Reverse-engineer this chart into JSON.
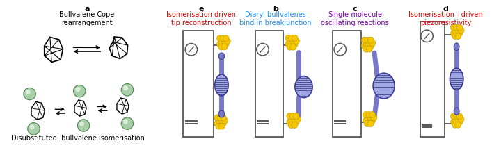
{
  "title_a": "a",
  "title_b": "b",
  "title_c": "c",
  "title_d": "d",
  "title_e": "e",
  "label_a": "Bullvalene Cope\nrearrangement",
  "label_b": "Diaryl bullvalenes\nbind in breakjunction",
  "label_c": "Single-molecule\noscillating reactions",
  "label_d": "Isomerisation - driven\npiezoresistivity",
  "label_e": "Isomerisation driven\ntip reconstruction",
  "label_bottom": "Disubstituted  bullvalene isomerisation",
  "color_b": "#1e90ff",
  "color_c": "#7b00b0",
  "color_d": "#e00000",
  "color_e": "#e00000",
  "blue_fill": "#7878c8",
  "blue_dark": "#3a3a90",
  "blue_light": "#a0a8e0",
  "yellow_fill": "#f5c800",
  "yellow_edge": "#c8a000",
  "gray_line": "#555555",
  "bg": "#ffffff",
  "green_fill": "#a8d0a8",
  "green_edge": "#508050",
  "green_hi": "#c8e8c8"
}
